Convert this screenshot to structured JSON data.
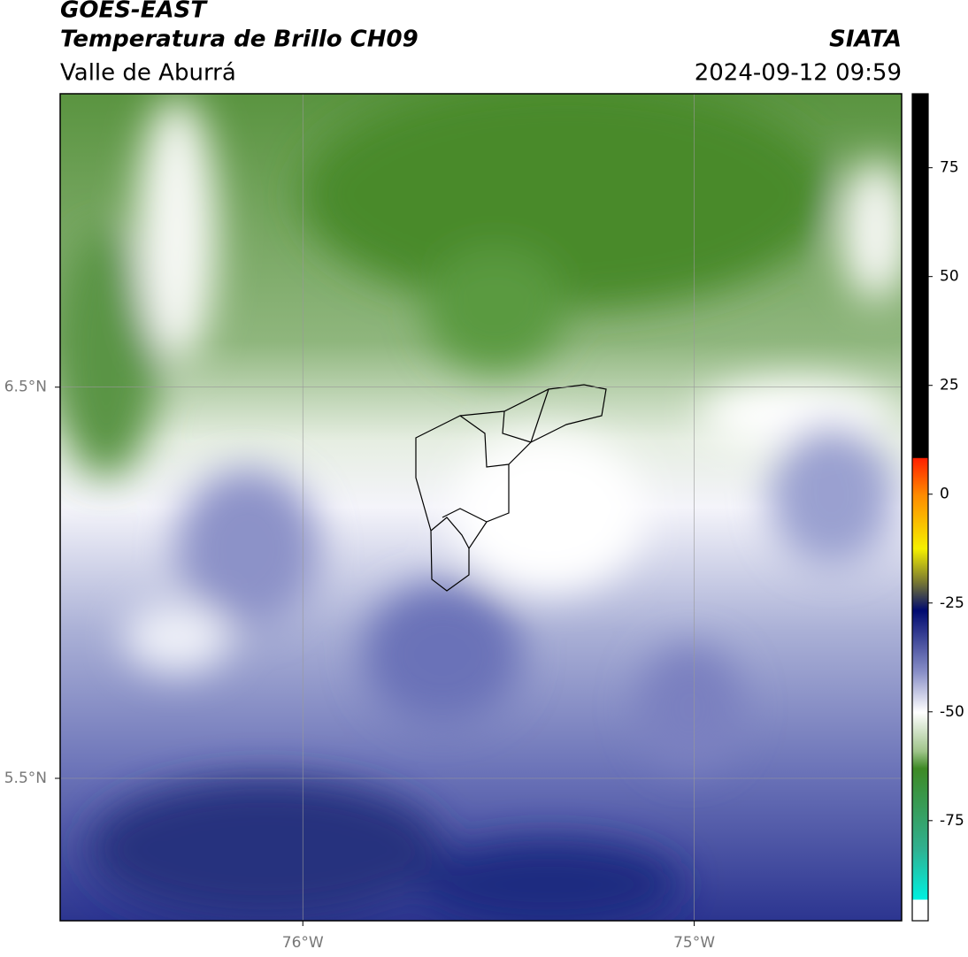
{
  "header": {
    "title": "GOES-EAST",
    "subtitle": "Temperatura de Brillo CH09",
    "region": "Valle de Aburrá",
    "source": "SIATA",
    "timestamp": "2024-09-12 09:59"
  },
  "map": {
    "xlim": [
      -76.62,
      -74.47
    ],
    "ylim": [
      5.136,
      7.25
    ],
    "xticks": [
      {
        "value": -76,
        "label": "76°W"
      },
      {
        "value": -75,
        "label": "75°W"
      }
    ],
    "yticks": [
      {
        "value": 5.5,
        "label": "5.5°N"
      },
      {
        "value": 6.5,
        "label": "6.5°N"
      }
    ],
    "grid": true
  },
  "colorbar": {
    "lim": [
      -98,
      92
    ],
    "ticks": [
      75,
      50,
      25,
      0,
      -25,
      -50,
      -75
    ]
  }
}
